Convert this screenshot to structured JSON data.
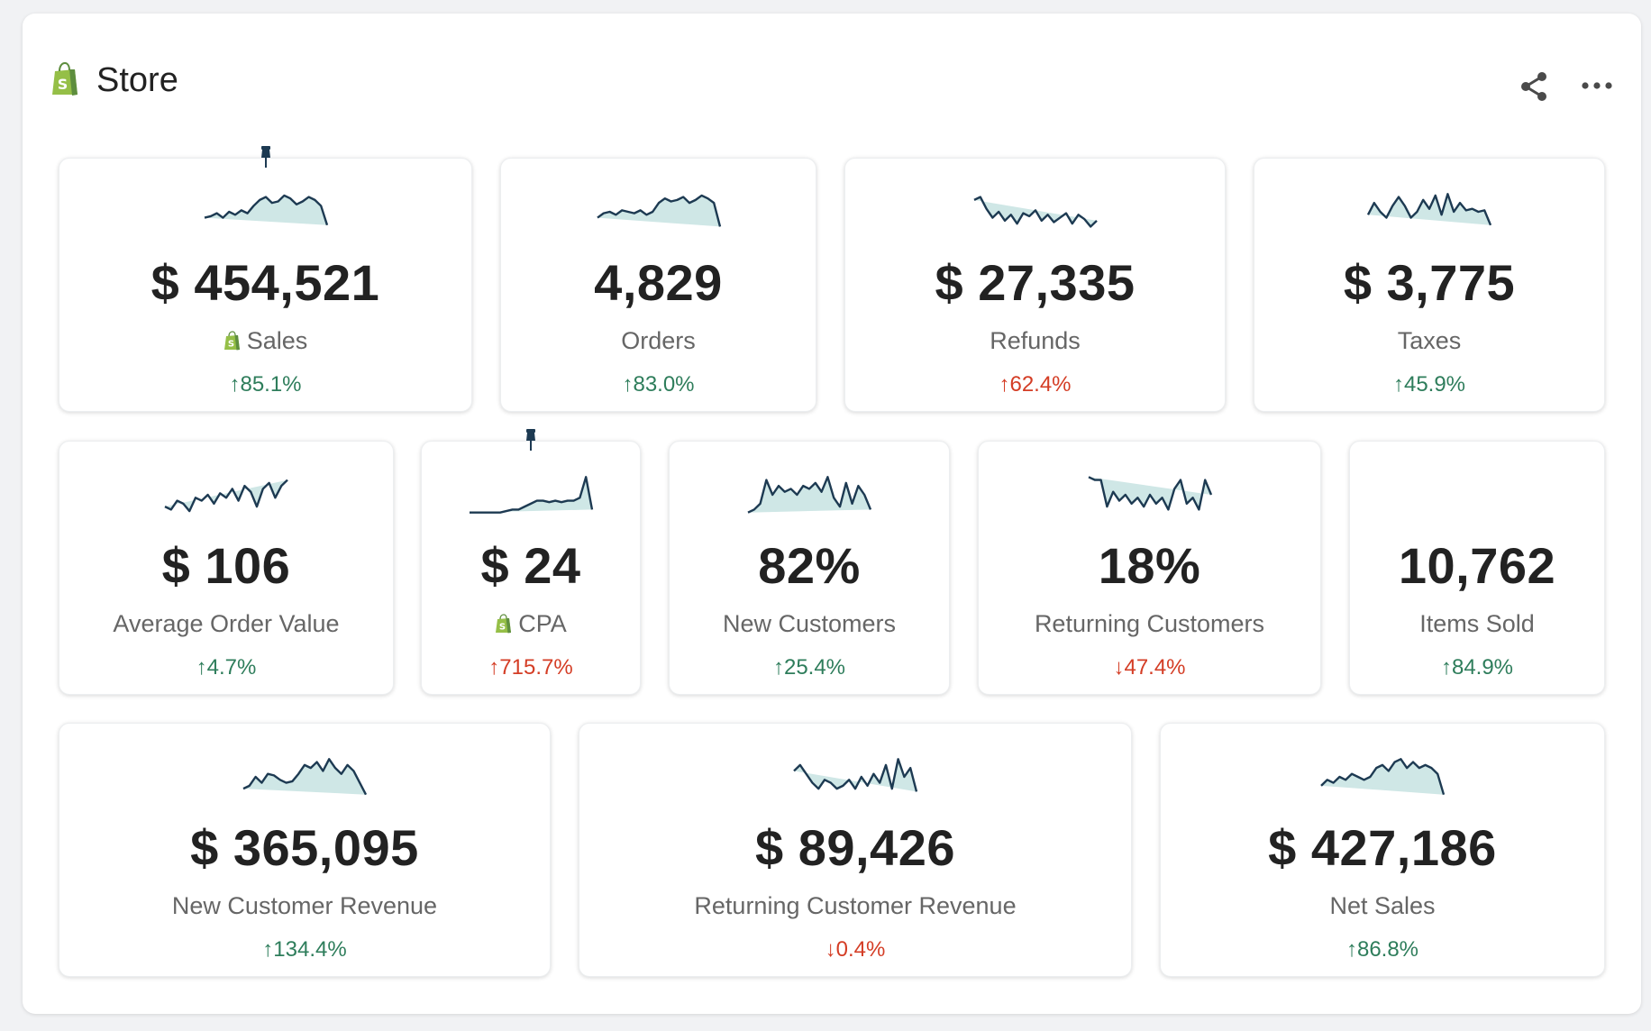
{
  "header": {
    "title": "Store",
    "logo_icon": "shopify-bag-icon",
    "actions": [
      {
        "name": "share-icon"
      },
      {
        "name": "more-options-icon"
      }
    ]
  },
  "colors": {
    "positive": "#2e7d5b",
    "negative": "#d43d25",
    "spark_line": "#1d3a52",
    "spark_fill": "#cfe7e6",
    "shopify_green": "#95bf47"
  },
  "cards": [
    {
      "id": "sales",
      "value": "$ 454,521",
      "label": "Sales",
      "change": "↑85.1%",
      "status": "good",
      "shop_icon": true,
      "pinned": true,
      "spark": [
        10,
        11,
        13,
        10,
        14,
        12,
        15,
        13,
        18,
        22,
        24,
        20,
        21,
        25,
        23,
        19,
        21,
        24,
        22,
        18,
        5
      ]
    },
    {
      "id": "orders",
      "value": "4,829",
      "label": "Orders",
      "change": "↑83.0%",
      "status": "good",
      "shop_icon": false,
      "pinned": false,
      "spark": [
        10,
        13,
        14,
        12,
        15,
        14,
        13,
        15,
        12,
        14,
        20,
        23,
        21,
        22,
        24,
        20,
        22,
        25,
        23,
        20,
        4
      ]
    },
    {
      "id": "refunds",
      "value": "$ 27,335",
      "label": "Refunds",
      "change": "↑62.4%",
      "status": "bad",
      "shop_icon": false,
      "pinned": false,
      "spark": [
        22,
        24,
        16,
        10,
        14,
        8,
        12,
        6,
        13,
        11,
        15,
        8,
        12,
        7,
        10,
        13,
        6,
        12,
        9,
        4,
        8
      ]
    },
    {
      "id": "taxes",
      "value": "$ 3,775",
      "label": "Taxes",
      "change": "↑45.9%",
      "status": "good",
      "shop_icon": false,
      "pinned": false,
      "spark": [
        12,
        20,
        14,
        10,
        18,
        24,
        18,
        10,
        14,
        22,
        16,
        25,
        12,
        26,
        14,
        20,
        15,
        16,
        14,
        15,
        5
      ]
    },
    {
      "id": "aov",
      "value": "$ 106",
      "label": "Average Order Value",
      "change": "↑4.7%",
      "status": "good",
      "shop_icon": false,
      "pinned": false,
      "spark": [
        6,
        4,
        10,
        8,
        3,
        12,
        10,
        14,
        8,
        15,
        12,
        18,
        10,
        20,
        16,
        6,
        18,
        22,
        12,
        20,
        24
      ]
    },
    {
      "id": "cpa",
      "value": "$ 24",
      "label": "CPA",
      "change": "↑715.7%",
      "status": "bad",
      "shop_icon": true,
      "pinned": true,
      "spark": [
        2,
        2,
        2,
        2,
        2,
        2,
        3,
        4,
        4,
        6,
        8,
        10,
        10,
        9,
        10,
        9,
        10,
        10,
        12,
        26,
        4
      ]
    },
    {
      "id": "new-customers",
      "value": "82%",
      "label": "New Customers",
      "change": "↑25.4%",
      "status": "good",
      "shop_icon": false,
      "pinned": false,
      "spark": [
        2,
        4,
        8,
        24,
        14,
        20,
        16,
        18,
        14,
        20,
        18,
        22,
        16,
        26,
        12,
        6,
        22,
        8,
        20,
        14,
        4
      ]
    },
    {
      "id": "returning-customers",
      "value": "18%",
      "label": "Returning Customers",
      "change": "↓47.4%",
      "status": "bad",
      "shop_icon": false,
      "pinned": false,
      "spark": [
        26,
        24,
        24,
        6,
        16,
        10,
        14,
        8,
        12,
        6,
        14,
        8,
        12,
        4,
        18,
        24,
        8,
        12,
        4,
        24,
        14
      ]
    },
    {
      "id": "items-sold",
      "value": "10,762",
      "label": "Items Sold",
      "change": "↑84.9%",
      "status": "good",
      "shop_icon": false,
      "pinned": false,
      "spark": []
    },
    {
      "id": "new-customer-revenue",
      "value": "$ 365,095",
      "label": "New Customer Revenue",
      "change": "↑134.4%",
      "status": "good",
      "shop_icon": false,
      "pinned": false,
      "spark": [
        6,
        8,
        14,
        10,
        16,
        15,
        12,
        10,
        11,
        16,
        22,
        20,
        24,
        18,
        26,
        20,
        16,
        22,
        18,
        10,
        2
      ]
    },
    {
      "id": "returning-customer-revenue",
      "value": "$ 89,426",
      "label": "Returning Customer Revenue",
      "change": "↓0.4%",
      "status": "bad",
      "shop_icon": false,
      "pinned": false,
      "spark": [
        18,
        22,
        16,
        10,
        6,
        12,
        10,
        6,
        8,
        12,
        6,
        14,
        8,
        16,
        10,
        22,
        6,
        26,
        14,
        20,
        4
      ]
    },
    {
      "id": "net-sales",
      "value": "$ 427,186",
      "label": "Net Sales",
      "change": "↑86.8%",
      "status": "good",
      "shop_icon": false,
      "pinned": false,
      "spark": [
        8,
        12,
        10,
        14,
        12,
        16,
        14,
        12,
        14,
        20,
        22,
        18,
        24,
        26,
        20,
        24,
        20,
        22,
        20,
        16,
        2
      ]
    }
  ]
}
